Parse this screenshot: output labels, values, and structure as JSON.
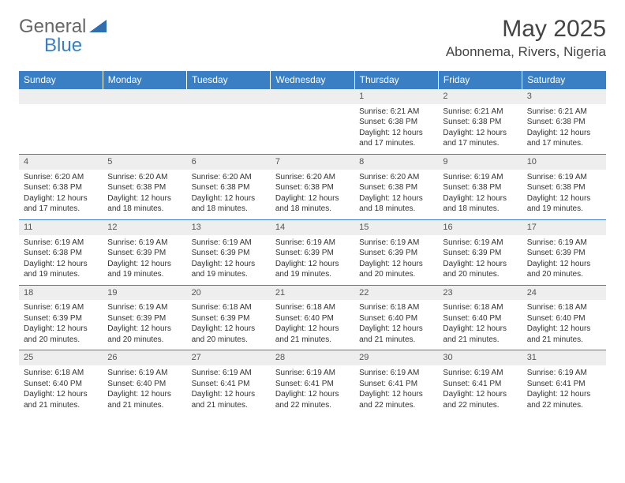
{
  "logo": {
    "text_general": "General",
    "text_blue": "Blue",
    "color_general": "#666666",
    "color_blue": "#3a7fc4"
  },
  "header": {
    "month_title": "May 2025",
    "location": "Abonnema, Rivers, Nigeria"
  },
  "style": {
    "header_bg": "#3a7fc4",
    "header_fg": "#ffffff",
    "daynum_bg": "#eeeeee",
    "row_border": "#3a7fc4",
    "body_bg": "#ffffff",
    "text_color": "#333333",
    "font_family": "Arial, Helvetica, sans-serif",
    "header_fontsize": 12,
    "cell_fontsize": 10,
    "title_fontsize": 30,
    "location_fontsize": 17
  },
  "weekdays": [
    "Sunday",
    "Monday",
    "Tuesday",
    "Wednesday",
    "Thursday",
    "Friday",
    "Saturday"
  ],
  "weeks": [
    [
      {
        "blank": true
      },
      {
        "blank": true
      },
      {
        "blank": true
      },
      {
        "blank": true
      },
      {
        "day": "1",
        "sunrise": "Sunrise: 6:21 AM",
        "sunset": "Sunset: 6:38 PM",
        "daylight1": "Daylight: 12 hours",
        "daylight2": "and 17 minutes."
      },
      {
        "day": "2",
        "sunrise": "Sunrise: 6:21 AM",
        "sunset": "Sunset: 6:38 PM",
        "daylight1": "Daylight: 12 hours",
        "daylight2": "and 17 minutes."
      },
      {
        "day": "3",
        "sunrise": "Sunrise: 6:21 AM",
        "sunset": "Sunset: 6:38 PM",
        "daylight1": "Daylight: 12 hours",
        "daylight2": "and 17 minutes."
      }
    ],
    [
      {
        "day": "4",
        "sunrise": "Sunrise: 6:20 AM",
        "sunset": "Sunset: 6:38 PM",
        "daylight1": "Daylight: 12 hours",
        "daylight2": "and 17 minutes."
      },
      {
        "day": "5",
        "sunrise": "Sunrise: 6:20 AM",
        "sunset": "Sunset: 6:38 PM",
        "daylight1": "Daylight: 12 hours",
        "daylight2": "and 18 minutes."
      },
      {
        "day": "6",
        "sunrise": "Sunrise: 6:20 AM",
        "sunset": "Sunset: 6:38 PM",
        "daylight1": "Daylight: 12 hours",
        "daylight2": "and 18 minutes."
      },
      {
        "day": "7",
        "sunrise": "Sunrise: 6:20 AM",
        "sunset": "Sunset: 6:38 PM",
        "daylight1": "Daylight: 12 hours",
        "daylight2": "and 18 minutes."
      },
      {
        "day": "8",
        "sunrise": "Sunrise: 6:20 AM",
        "sunset": "Sunset: 6:38 PM",
        "daylight1": "Daylight: 12 hours",
        "daylight2": "and 18 minutes."
      },
      {
        "day": "9",
        "sunrise": "Sunrise: 6:19 AM",
        "sunset": "Sunset: 6:38 PM",
        "daylight1": "Daylight: 12 hours",
        "daylight2": "and 18 minutes."
      },
      {
        "day": "10",
        "sunrise": "Sunrise: 6:19 AM",
        "sunset": "Sunset: 6:38 PM",
        "daylight1": "Daylight: 12 hours",
        "daylight2": "and 19 minutes."
      }
    ],
    [
      {
        "day": "11",
        "sunrise": "Sunrise: 6:19 AM",
        "sunset": "Sunset: 6:38 PM",
        "daylight1": "Daylight: 12 hours",
        "daylight2": "and 19 minutes."
      },
      {
        "day": "12",
        "sunrise": "Sunrise: 6:19 AM",
        "sunset": "Sunset: 6:39 PM",
        "daylight1": "Daylight: 12 hours",
        "daylight2": "and 19 minutes."
      },
      {
        "day": "13",
        "sunrise": "Sunrise: 6:19 AM",
        "sunset": "Sunset: 6:39 PM",
        "daylight1": "Daylight: 12 hours",
        "daylight2": "and 19 minutes."
      },
      {
        "day": "14",
        "sunrise": "Sunrise: 6:19 AM",
        "sunset": "Sunset: 6:39 PM",
        "daylight1": "Daylight: 12 hours",
        "daylight2": "and 19 minutes."
      },
      {
        "day": "15",
        "sunrise": "Sunrise: 6:19 AM",
        "sunset": "Sunset: 6:39 PM",
        "daylight1": "Daylight: 12 hours",
        "daylight2": "and 20 minutes."
      },
      {
        "day": "16",
        "sunrise": "Sunrise: 6:19 AM",
        "sunset": "Sunset: 6:39 PM",
        "daylight1": "Daylight: 12 hours",
        "daylight2": "and 20 minutes."
      },
      {
        "day": "17",
        "sunrise": "Sunrise: 6:19 AM",
        "sunset": "Sunset: 6:39 PM",
        "daylight1": "Daylight: 12 hours",
        "daylight2": "and 20 minutes."
      }
    ],
    [
      {
        "day": "18",
        "sunrise": "Sunrise: 6:19 AM",
        "sunset": "Sunset: 6:39 PM",
        "daylight1": "Daylight: 12 hours",
        "daylight2": "and 20 minutes."
      },
      {
        "day": "19",
        "sunrise": "Sunrise: 6:19 AM",
        "sunset": "Sunset: 6:39 PM",
        "daylight1": "Daylight: 12 hours",
        "daylight2": "and 20 minutes."
      },
      {
        "day": "20",
        "sunrise": "Sunrise: 6:18 AM",
        "sunset": "Sunset: 6:39 PM",
        "daylight1": "Daylight: 12 hours",
        "daylight2": "and 20 minutes."
      },
      {
        "day": "21",
        "sunrise": "Sunrise: 6:18 AM",
        "sunset": "Sunset: 6:40 PM",
        "daylight1": "Daylight: 12 hours",
        "daylight2": "and 21 minutes."
      },
      {
        "day": "22",
        "sunrise": "Sunrise: 6:18 AM",
        "sunset": "Sunset: 6:40 PM",
        "daylight1": "Daylight: 12 hours",
        "daylight2": "and 21 minutes."
      },
      {
        "day": "23",
        "sunrise": "Sunrise: 6:18 AM",
        "sunset": "Sunset: 6:40 PM",
        "daylight1": "Daylight: 12 hours",
        "daylight2": "and 21 minutes."
      },
      {
        "day": "24",
        "sunrise": "Sunrise: 6:18 AM",
        "sunset": "Sunset: 6:40 PM",
        "daylight1": "Daylight: 12 hours",
        "daylight2": "and 21 minutes."
      }
    ],
    [
      {
        "day": "25",
        "sunrise": "Sunrise: 6:18 AM",
        "sunset": "Sunset: 6:40 PM",
        "daylight1": "Daylight: 12 hours",
        "daylight2": "and 21 minutes."
      },
      {
        "day": "26",
        "sunrise": "Sunrise: 6:19 AM",
        "sunset": "Sunset: 6:40 PM",
        "daylight1": "Daylight: 12 hours",
        "daylight2": "and 21 minutes."
      },
      {
        "day": "27",
        "sunrise": "Sunrise: 6:19 AM",
        "sunset": "Sunset: 6:41 PM",
        "daylight1": "Daylight: 12 hours",
        "daylight2": "and 21 minutes."
      },
      {
        "day": "28",
        "sunrise": "Sunrise: 6:19 AM",
        "sunset": "Sunset: 6:41 PM",
        "daylight1": "Daylight: 12 hours",
        "daylight2": "and 22 minutes."
      },
      {
        "day": "29",
        "sunrise": "Sunrise: 6:19 AM",
        "sunset": "Sunset: 6:41 PM",
        "daylight1": "Daylight: 12 hours",
        "daylight2": "and 22 minutes."
      },
      {
        "day": "30",
        "sunrise": "Sunrise: 6:19 AM",
        "sunset": "Sunset: 6:41 PM",
        "daylight1": "Daylight: 12 hours",
        "daylight2": "and 22 minutes."
      },
      {
        "day": "31",
        "sunrise": "Sunrise: 6:19 AM",
        "sunset": "Sunset: 6:41 PM",
        "daylight1": "Daylight: 12 hours",
        "daylight2": "and 22 minutes."
      }
    ]
  ]
}
